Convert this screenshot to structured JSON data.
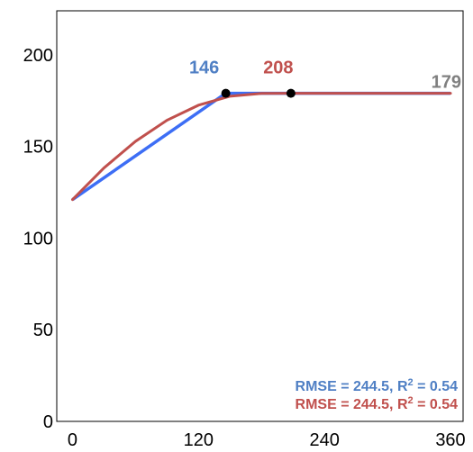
{
  "chart_data": {
    "type": "line",
    "title": "",
    "xlabel": "",
    "ylabel": "",
    "xlim": [
      -15,
      372
    ],
    "ylim": [
      0,
      224
    ],
    "x_ticks": [
      0,
      120,
      240,
      360
    ],
    "y_ticks": [
      0,
      50,
      100,
      150,
      200
    ],
    "x_tick_labels": [
      "0",
      "120",
      "240",
      "360"
    ],
    "y_tick_labels": [
      "0",
      "50",
      "100",
      "150",
      "200"
    ],
    "grid": false,
    "series": [
      {
        "color": "#3d6ef5",
        "kind": "linear-plateau",
        "x": [
          0,
          146,
          360
        ],
        "y": [
          121,
          179,
          179
        ],
        "breakpoint": {
          "x": 146,
          "y": 179
        }
      },
      {
        "color": "#c0504d",
        "kind": "quadratic-plateau",
        "x": [
          0,
          30,
          60,
          90,
          120,
          150,
          180,
          208,
          240,
          300,
          360
        ],
        "y": [
          121,
          138.3,
          152.8,
          164.3,
          172.5,
          177.4,
          178.9,
          179,
          179,
          179,
          179
        ],
        "breakpoint": {
          "x": 208,
          "y": 179
        }
      }
    ],
    "annotations": {
      "blue_breakpoint": {
        "text": "146",
        "color": "#4f7fc4"
      },
      "red_breakpoint": {
        "text": "208",
        "color": "#c0504d"
      },
      "plateau": {
        "text": "179",
        "color": "#808080"
      }
    },
    "stats": [
      {
        "prefix": "RMSE = 244.5, R",
        "sup": "2",
        "suffix": " = 0.54",
        "color": "#4f7fc4"
      },
      {
        "prefix": "RMSE = 244.5, R",
        "sup": "2",
        "suffix": " = 0.54",
        "color": "#c0504d"
      }
    ]
  }
}
